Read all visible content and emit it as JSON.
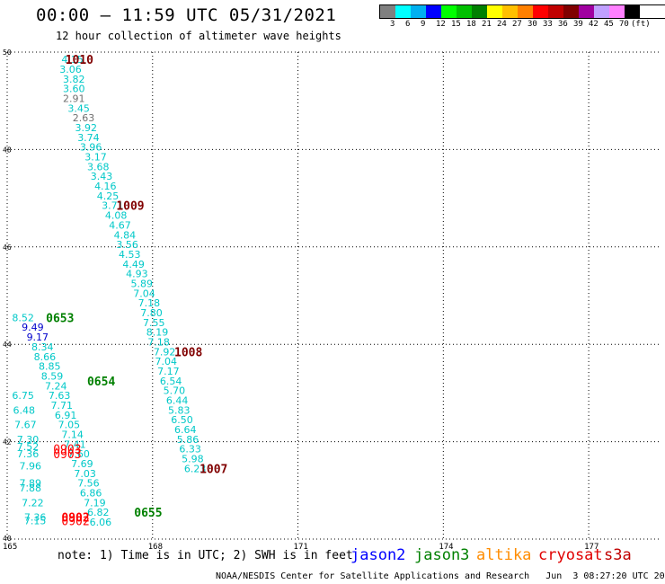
{
  "title": "00:00 – 11:59 UTC 05/31/2021",
  "subtitle": "12 hour collection of altimeter wave heights",
  "legend": {
    "colors": [
      "#808080",
      "#00ffff",
      "#00b0f0",
      "#0000ff",
      "#00ff00",
      "#00c000",
      "#008000",
      "#ffff00",
      "#ffc000",
      "#ff8000",
      "#ff0000",
      "#c00000",
      "#800000",
      "#a000a0",
      "#c0a0ff",
      "#ff80ff",
      "#000000"
    ],
    "labels": [
      "3",
      "6",
      "9",
      "12",
      "15",
      "18",
      "21",
      "24",
      "27",
      "30",
      "33",
      "36",
      "39",
      "42",
      "45",
      "70",
      "(ft)"
    ]
  },
  "axes": {
    "x_ticks": [
      "165",
      "168",
      "171",
      "174",
      "177"
    ],
    "y_ticks": [
      "50",
      "48",
      "46",
      "44",
      "42",
      "40"
    ]
  },
  "chart_data": {
    "type": "scatter",
    "x_range": [
      165,
      178.5
    ],
    "y_range": [
      40,
      50
    ],
    "observations": [
      {
        "x": 166.12,
        "y": 49.85,
        "label": "4.15",
        "color": "#00c8c8"
      },
      {
        "x": 166.08,
        "y": 49.65,
        "label": "3.06",
        "color": "#00c8c8"
      },
      {
        "x": 166.15,
        "y": 49.45,
        "label": "3.82",
        "color": "#00c8c8"
      },
      {
        "x": 166.15,
        "y": 49.25,
        "label": "3.60",
        "color": "#00c8c8"
      },
      {
        "x": 166.15,
        "y": 49.05,
        "label": "2.91",
        "color": "#707070"
      },
      {
        "x": 166.25,
        "y": 48.85,
        "label": "3.45",
        "color": "#00c8c8"
      },
      {
        "x": 166.35,
        "y": 48.65,
        "label": "2.63",
        "color": "#707070"
      },
      {
        "x": 166.4,
        "y": 48.45,
        "label": "3.92",
        "color": "#00c8c8"
      },
      {
        "x": 166.45,
        "y": 48.25,
        "label": "3.74",
        "color": "#00c8c8"
      },
      {
        "x": 166.5,
        "y": 48.05,
        "label": "3.96",
        "color": "#00c8c8"
      },
      {
        "x": 166.6,
        "y": 47.85,
        "label": "3.17",
        "color": "#00c8c8"
      },
      {
        "x": 166.65,
        "y": 47.65,
        "label": "3.68",
        "color": "#00c8c8"
      },
      {
        "x": 166.72,
        "y": 47.45,
        "label": "3.43",
        "color": "#00c8c8"
      },
      {
        "x": 166.8,
        "y": 47.25,
        "label": "4.16",
        "color": "#00c8c8"
      },
      {
        "x": 166.85,
        "y": 47.05,
        "label": "4.25",
        "color": "#00c8c8"
      },
      {
        "x": 166.95,
        "y": 46.85,
        "label": "3.71",
        "color": "#00c8c8"
      },
      {
        "x": 167.02,
        "y": 46.65,
        "label": "4.08",
        "color": "#00c8c8"
      },
      {
        "x": 167.1,
        "y": 46.45,
        "label": "4.67",
        "color": "#00c8c8"
      },
      {
        "x": 167.2,
        "y": 46.25,
        "label": "4.84",
        "color": "#00c8c8"
      },
      {
        "x": 167.25,
        "y": 46.05,
        "label": "3.56",
        "color": "#00c8c8"
      },
      {
        "x": 167.3,
        "y": 45.85,
        "label": "4.53",
        "color": "#00c8c8"
      },
      {
        "x": 167.38,
        "y": 45.65,
        "label": "4.49",
        "color": "#00c8c8"
      },
      {
        "x": 167.45,
        "y": 45.45,
        "label": "4.93",
        "color": "#00c8c8"
      },
      {
        "x": 167.55,
        "y": 45.25,
        "label": "5.89",
        "color": "#00c8c8"
      },
      {
        "x": 167.6,
        "y": 45.05,
        "label": "7.04",
        "color": "#00c8c8"
      },
      {
        "x": 167.7,
        "y": 44.85,
        "label": "7.18",
        "color": "#00c8c8"
      },
      {
        "x": 167.75,
        "y": 44.65,
        "label": "7.80",
        "color": "#00c8c8"
      },
      {
        "x": 167.8,
        "y": 44.45,
        "label": "7.55",
        "color": "#00c8c8"
      },
      {
        "x": 167.87,
        "y": 44.25,
        "label": "8.19",
        "color": "#00c8c8"
      },
      {
        "x": 167.9,
        "y": 44.05,
        "label": "7.18",
        "color": "#00c8c8"
      },
      {
        "x": 168.02,
        "y": 43.85,
        "label": "7.92",
        "color": "#00c8c8"
      },
      {
        "x": 168.05,
        "y": 43.65,
        "label": "7.04",
        "color": "#00c8c8"
      },
      {
        "x": 168.1,
        "y": 43.45,
        "label": "7.17",
        "color": "#00c8c8"
      },
      {
        "x": 168.15,
        "y": 43.25,
        "label": "6.54",
        "color": "#00c8c8"
      },
      {
        "x": 168.22,
        "y": 43.05,
        "label": "5.70",
        "color": "#00c8c8"
      },
      {
        "x": 168.28,
        "y": 42.85,
        "label": "6.44",
        "color": "#00c8c8"
      },
      {
        "x": 168.32,
        "y": 42.65,
        "label": "5.83",
        "color": "#00c8c8"
      },
      {
        "x": 168.38,
        "y": 42.45,
        "label": "6.50",
        "color": "#00c8c8"
      },
      {
        "x": 168.45,
        "y": 42.25,
        "label": "6.64",
        "color": "#00c8c8"
      },
      {
        "x": 168.5,
        "y": 42.05,
        "label": "5.86",
        "color": "#00c8c8"
      },
      {
        "x": 168.55,
        "y": 41.85,
        "label": "6.33",
        "color": "#00c8c8"
      },
      {
        "x": 168.6,
        "y": 41.65,
        "label": "5.98",
        "color": "#00c8c8"
      },
      {
        "x": 168.65,
        "y": 41.45,
        "label": "6.23",
        "color": "#00c8c8"
      },
      {
        "x": 165.1,
        "y": 44.55,
        "label": "8.52",
        "color": "#00c8c8"
      },
      {
        "x": 165.3,
        "y": 44.35,
        "label": "9.49",
        "color": "#0000cc"
      },
      {
        "x": 165.4,
        "y": 44.15,
        "label": "9.17",
        "color": "#0000cc"
      },
      {
        "x": 165.5,
        "y": 43.95,
        "label": "8.34",
        "color": "#00c8c8"
      },
      {
        "x": 165.55,
        "y": 43.75,
        "label": "8.66",
        "color": "#00c8c8"
      },
      {
        "x": 165.65,
        "y": 43.55,
        "label": "8.85",
        "color": "#00c8c8"
      },
      {
        "x": 165.7,
        "y": 43.35,
        "label": "8.59",
        "color": "#00c8c8"
      },
      {
        "x": 165.78,
        "y": 43.15,
        "label": "7.24",
        "color": "#00c8c8"
      },
      {
        "x": 165.85,
        "y": 42.95,
        "label": "7.63",
        "color": "#00c8c8"
      },
      {
        "x": 165.9,
        "y": 42.75,
        "label": "7.71",
        "color": "#00c8c8"
      },
      {
        "x": 165.98,
        "y": 42.55,
        "label": "6.91",
        "color": "#00c8c8"
      },
      {
        "x": 166.05,
        "y": 42.35,
        "label": "7.05",
        "color": "#00c8c8"
      },
      {
        "x": 166.12,
        "y": 42.15,
        "label": "7.14",
        "color": "#00c8c8"
      },
      {
        "x": 166.17,
        "y": 41.95,
        "label": "7.41",
        "color": "#00c8c8"
      },
      {
        "x": 166.25,
        "y": 41.75,
        "label": "7.60",
        "color": "#00c8c8"
      },
      {
        "x": 166.32,
        "y": 41.55,
        "label": "7.69",
        "color": "#00c8c8"
      },
      {
        "x": 166.38,
        "y": 41.35,
        "label": "7.03",
        "color": "#00c8c8"
      },
      {
        "x": 166.45,
        "y": 41.15,
        "label": "7.56",
        "color": "#00c8c8"
      },
      {
        "x": 166.5,
        "y": 40.95,
        "label": "6.86",
        "color": "#00c8c8"
      },
      {
        "x": 166.58,
        "y": 40.75,
        "label": "7.19",
        "color": "#00c8c8"
      },
      {
        "x": 166.65,
        "y": 40.55,
        "label": "6.82",
        "color": "#00c8c8"
      },
      {
        "x": 166.7,
        "y": 40.35,
        "label": "6.06",
        "color": "#00c8c8"
      },
      {
        "x": 165.1,
        "y": 42.95,
        "label": "6.75",
        "color": "#00c8c8"
      },
      {
        "x": 165.12,
        "y": 42.65,
        "label": "6.48",
        "color": "#00c8c8"
      },
      {
        "x": 165.15,
        "y": 42.35,
        "label": "7.67",
        "color": "#00c8c8"
      },
      {
        "x": 165.2,
        "y": 42.05,
        "label": "7.30",
        "color": "#00c8c8"
      },
      {
        "x": 165.2,
        "y": 41.9,
        "label": "7.52",
        "color": "#00c8c8"
      },
      {
        "x": 165.2,
        "y": 41.75,
        "label": "7.36",
        "color": "#00c8c8"
      },
      {
        "x": 165.25,
        "y": 41.5,
        "label": "7.96",
        "color": "#00c8c8"
      },
      {
        "x": 165.25,
        "y": 41.15,
        "label": "7.89",
        "color": "#00c8c8"
      },
      {
        "x": 165.25,
        "y": 41.05,
        "label": "7.88",
        "color": "#00c8c8"
      },
      {
        "x": 165.3,
        "y": 40.75,
        "label": "7.22",
        "color": "#00c8c8"
      },
      {
        "x": 165.35,
        "y": 40.45,
        "label": "7.36",
        "color": "#00c8c8"
      },
      {
        "x": 165.35,
        "y": 40.38,
        "label": "7.15",
        "color": "#00c8c8"
      }
    ],
    "time_labels": [
      {
        "x": 166.2,
        "y": 49.85,
        "label": "1010",
        "color": "#800000",
        "weight": "bold"
      },
      {
        "x": 167.25,
        "y": 46.85,
        "label": "1009",
        "color": "#800000",
        "weight": "bold"
      },
      {
        "x": 168.45,
        "y": 43.85,
        "label": "1008",
        "color": "#800000",
        "weight": "bold"
      },
      {
        "x": 168.97,
        "y": 41.45,
        "label": "1007",
        "color": "#800000",
        "weight": "bold"
      },
      {
        "x": 165.8,
        "y": 44.55,
        "label": "0653",
        "color": "#008000",
        "weight": "bold"
      },
      {
        "x": 166.65,
        "y": 43.25,
        "label": "0654",
        "color": "#008000",
        "weight": "bold"
      },
      {
        "x": 167.62,
        "y": 40.55,
        "label": "0655",
        "color": "#008000",
        "weight": "bold"
      },
      {
        "x": 165.95,
        "y": 41.85,
        "label": "0903",
        "color": "#ff0000",
        "weight": "normal"
      },
      {
        "x": 165.95,
        "y": 41.75,
        "label": "0903",
        "color": "#ff0000",
        "weight": "normal"
      },
      {
        "x": 166.12,
        "y": 40.45,
        "label": "0902",
        "color": "#ff0000",
        "weight": "bold"
      },
      {
        "x": 166.12,
        "y": 40.38,
        "label": "0902",
        "color": "#ff0000",
        "weight": "normal"
      }
    ]
  },
  "note": "note: 1) Time is in UTC; 2) SWH is in feet",
  "satellites": [
    {
      "name": "jason2",
      "color": "#0000ff"
    },
    {
      "name": "jason3",
      "color": "#008000"
    },
    {
      "name": "altika",
      "color": "#ff8c00"
    },
    {
      "name": "cryosat",
      "color": "#e00000"
    },
    {
      "name": "s3a",
      "color": "#c00000"
    }
  ],
  "footer": "NOAA/NESDIS Center for Satellite Applications and Research   Jun  3 08:27:20 UTC 2021"
}
